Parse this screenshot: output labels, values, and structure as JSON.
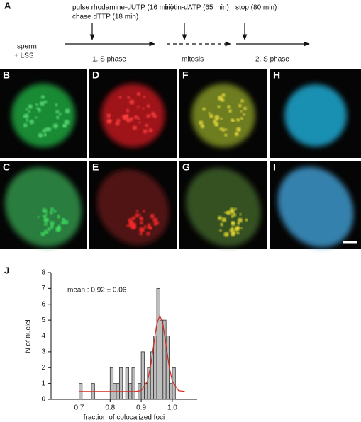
{
  "panel_a": {
    "label": "A",
    "sample": [
      "sperm",
      "+ LSS"
    ],
    "pulse": [
      "pulse rhodamine-dUTP (16 min)",
      "chase dTTP (18 min)"
    ],
    "biotin": "biotin-dATP (65 min)",
    "stop": "stop (80 min)",
    "phases": [
      "1. S phase",
      "mitosis",
      "2. S phase"
    ]
  },
  "micrographs": [
    {
      "label": "B"
    },
    {
      "label": "D"
    },
    {
      "label": "F"
    },
    {
      "label": "H"
    },
    {
      "label": "C"
    },
    {
      "label": "E"
    },
    {
      "label": "G"
    },
    {
      "label": "I"
    }
  ],
  "chart_data": {
    "type": "histogram",
    "panel_label": "J",
    "ylabel": "N of nuclei",
    "xlabel": "fraction of colocalized foci",
    "annotation": "mean : 0.92 ± 0.06",
    "bins": [
      0.7,
      0.71,
      0.72,
      0.73,
      0.74,
      0.75,
      0.76,
      0.77,
      0.78,
      0.79,
      0.8,
      0.81,
      0.82,
      0.83,
      0.84,
      0.85,
      0.86,
      0.87,
      0.88,
      0.89,
      0.9,
      0.91,
      0.92,
      0.93,
      0.94,
      0.95,
      0.96,
      0.97,
      0.98,
      0.99,
      1.0,
      1.01
    ],
    "counts": [
      1,
      0,
      0,
      0,
      1,
      0,
      0,
      0,
      0,
      0,
      2,
      1,
      1,
      2,
      0,
      2,
      1,
      2,
      0,
      1,
      3,
      1,
      2,
      3,
      4,
      7,
      5,
      5,
      4,
      1,
      2
    ],
    "color": "#bdbdbd",
    "fit": {
      "color": "#d8281c",
      "x": [
        0.7,
        0.74,
        0.78,
        0.82,
        0.86,
        0.88,
        0.9,
        0.92,
        0.93,
        0.94,
        0.95,
        0.96,
        0.97,
        0.98,
        0.99,
        1.0,
        1.02,
        1.04
      ],
      "values": [
        0.5,
        0.5,
        0.5,
        0.5,
        0.5,
        0.5,
        0.55,
        1.15,
        2.06,
        3.41,
        4.74,
        5.3,
        4.74,
        3.41,
        2.06,
        1.15,
        0.55,
        0.5
      ]
    },
    "xlim": [
      0.61,
      1.08
    ],
    "ylim": [
      0,
      8
    ],
    "xticks": [
      0.7,
      0.8,
      0.9,
      {
        "value": 1,
        "label": "1.0"
      }
    ],
    "yticks": [
      0,
      1,
      2,
      3,
      4,
      5,
      6,
      7,
      8
    ]
  }
}
